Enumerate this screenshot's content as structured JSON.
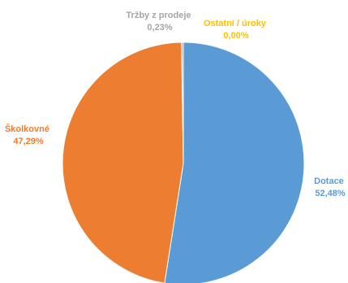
{
  "chart_data": {
    "type": "pie",
    "title": "",
    "start_angle_deg": 0,
    "direction": "clockwise",
    "slices": [
      {
        "name": "Dotace",
        "value": 52.48,
        "value_label": "52,48%",
        "color": "#5B9BD5"
      },
      {
        "name": "Školkovné",
        "value": 47.29,
        "value_label": "47,29%",
        "color": "#ED7D31"
      },
      {
        "name": "Tržby z prodeje",
        "value": 0.23,
        "value_label": "0,23%",
        "color": "#A5A5A5"
      },
      {
        "name": "Ostatní / úroky",
        "value": 0.0,
        "value_label": "0,00%",
        "color": "#FFC000"
      }
    ],
    "legend": "none",
    "data_labels": "outside-name-and-percent"
  }
}
